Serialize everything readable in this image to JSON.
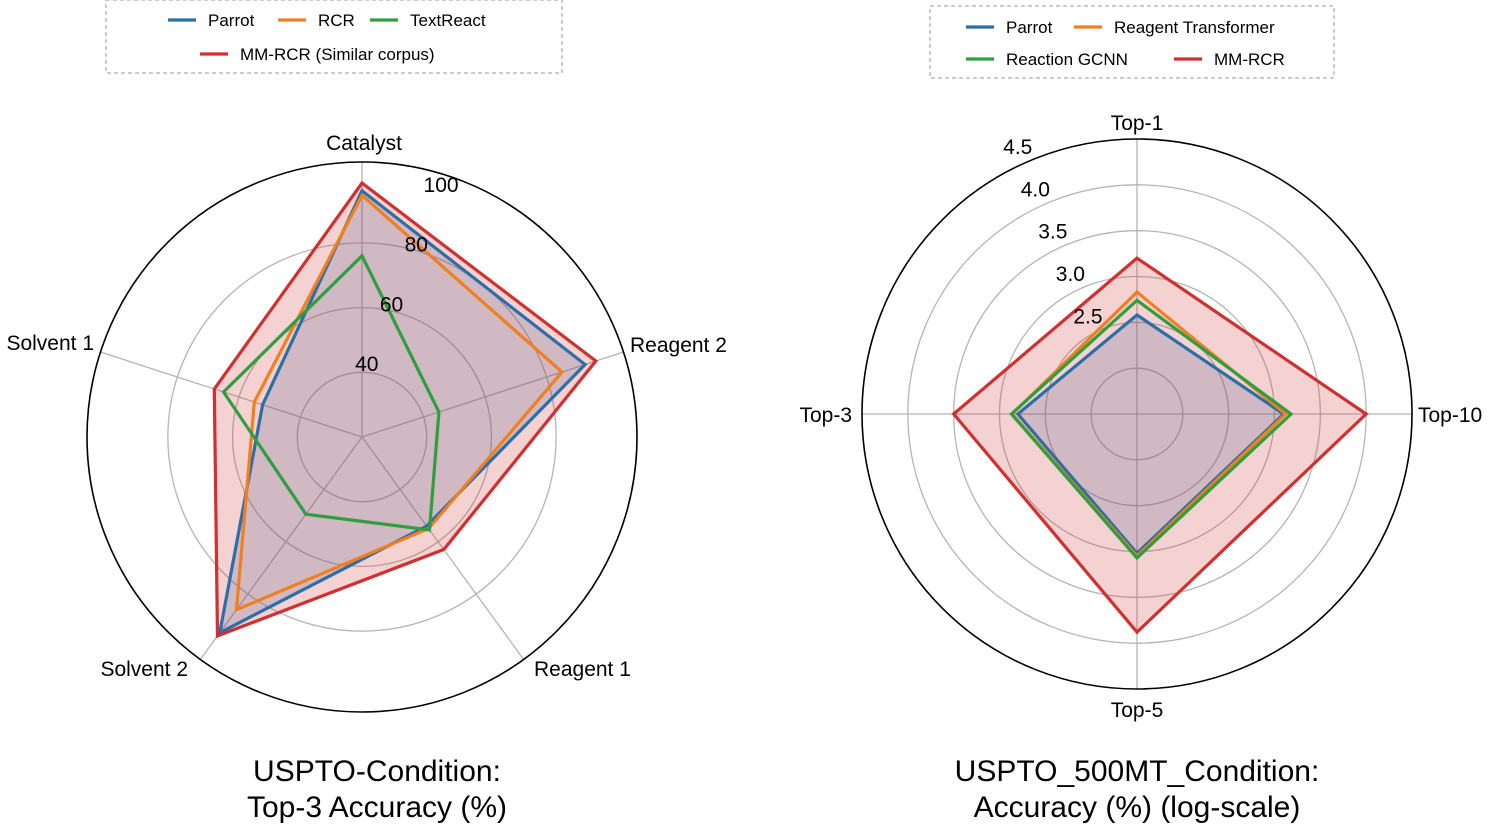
{
  "chart_data": [
    {
      "type": "radar",
      "title_lines": [
        "USPTO-Condition:",
        "Top-3 Accuracy (%)"
      ],
      "axes": [
        "Catalyst",
        "Reagent 2",
        "Reagent 1",
        "Solvent 2",
        "Solvent 1"
      ],
      "rlim": [
        20,
        105
      ],
      "r_ticks": [
        40,
        60,
        80,
        100
      ],
      "grid": true,
      "legend_position": "top",
      "series": [
        {
          "name": "Parrot",
          "color": "#2b6ea8",
          "values": [
            96.1,
            92.5,
            54.0,
            94.8,
            52.3
          ],
          "fill": true
        },
        {
          "name": "RCR",
          "color": "#f07f20",
          "values": [
            94.7,
            85.0,
            55.0,
            86.0,
            55.0
          ],
          "fill": false
        },
        {
          "name": "TextReact",
          "color": "#2f9e3f",
          "values": [
            76.0,
            45.0,
            55.5,
            49.5,
            65.0
          ],
          "fill": false
        },
        {
          "name": "MM-RCR (Similar corpus)",
          "color": "#d03030",
          "values": [
            98.5,
            96.0,
            63.0,
            96.0,
            68.0
          ],
          "fill": true
        }
      ],
      "legend_rows": [
        [
          "Parrot",
          "RCR",
          "TextReact"
        ],
        [
          "MM-RCR (Similar corpus)"
        ]
      ]
    },
    {
      "type": "radar",
      "title_lines": [
        "USPTO_500MT_Condition:",
        "Accuracy (%) (log-scale)"
      ],
      "axes": [
        "Top-1",
        "Top-10",
        "Top-5",
        "Top-3"
      ],
      "rlim": [
        1.5,
        4.5
      ],
      "r_ticks": [
        2.5,
        3.0,
        3.5,
        4.0,
        4.5
      ],
      "log_scale": true,
      "grid": true,
      "legend_position": "top",
      "series": [
        {
          "name": "Parrot",
          "color": "#2b6ea8",
          "values": [
            2.58,
            3.1,
            3.02,
            2.8
          ],
          "fill": true
        },
        {
          "name": "Reagent Transformer",
          "color": "#f07f20",
          "values": [
            2.83,
            3.12,
            3.05,
            2.86
          ],
          "fill": false
        },
        {
          "name": "Reaction GCNN",
          "color": "#2f9e3f",
          "values": [
            2.74,
            3.18,
            3.07,
            2.87
          ],
          "fill": false
        },
        {
          "name": "MM-RCR",
          "color": "#d03030",
          "values": [
            3.2,
            4.0,
            3.88,
            3.5
          ],
          "fill": true
        }
      ],
      "legend_rows": [
        [
          "Parrot",
          "Reagent Transformer"
        ],
        [
          "Reaction GCNN",
          "MM-RCR"
        ]
      ]
    }
  ]
}
